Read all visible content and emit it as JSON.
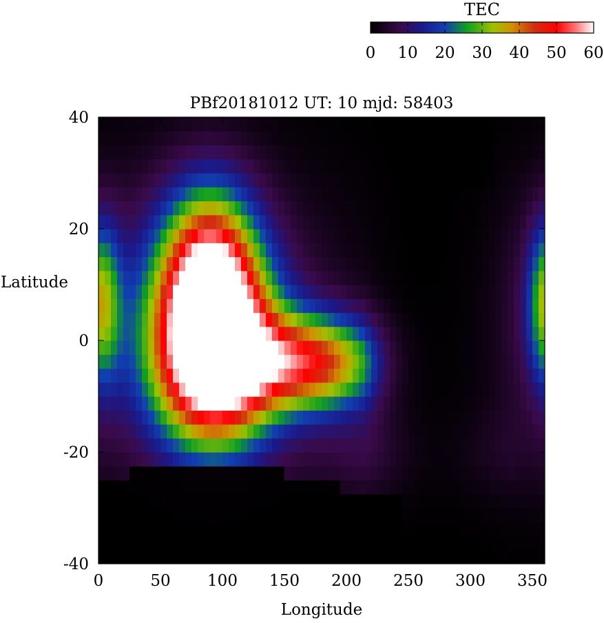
{
  "chart_data": {
    "type": "heatmap",
    "title": "PBf20181012  UT: 10  mjd: 58403",
    "xlabel": "Longitude",
    "ylabel": "Latitude",
    "xlim": [
      0,
      360
    ],
    "ylim": [
      -40,
      40
    ],
    "x_ticks": [
      0,
      50,
      100,
      150,
      200,
      250,
      300,
      350
    ],
    "y_ticks": [
      -40,
      -20,
      0,
      20,
      40
    ],
    "grid": false,
    "colorbar": {
      "title": "TEC",
      "range": [
        0,
        60
      ],
      "ticks": [
        0,
        10,
        20,
        30,
        40,
        50,
        60
      ],
      "placement": "top-right",
      "stops": [
        {
          "v": 0,
          "color": "#000000"
        },
        {
          "v": 8,
          "color": "#3a0a4a"
        },
        {
          "v": 14,
          "color": "#1a1a8c"
        },
        {
          "v": 20,
          "color": "#1040b0"
        },
        {
          "v": 26,
          "color": "#10a020"
        },
        {
          "v": 33,
          "color": "#a0c000"
        },
        {
          "v": 38,
          "color": "#d09000"
        },
        {
          "v": 44,
          "color": "#d03010"
        },
        {
          "v": 50,
          "color": "#ff0000"
        },
        {
          "v": 55,
          "color": "#ff7070"
        },
        {
          "v": 60,
          "color": "#ffffff"
        }
      ]
    },
    "grid_spacing": {
      "lon": 5,
      "lat": 2.5
    },
    "features": [
      {
        "lon": 93,
        "lat": -3,
        "peak": 61,
        "sx": 32,
        "sy": 11
      },
      {
        "lon": 90,
        "lat": 12,
        "peak": 44,
        "sx": 26,
        "sy": 11
      },
      {
        "lon": 170,
        "lat": -4,
        "peak": 43,
        "sx": 42,
        "sy": 6
      },
      {
        "lon": 75,
        "lat": 3,
        "peak": 15,
        "sx": 70,
        "sy": 17
      },
      {
        "lon": 362,
        "lat": 7,
        "peak": 27,
        "sx": 11,
        "sy": 10
      },
      {
        "lon": 250,
        "lat": -20,
        "peak": 8,
        "sx": 55,
        "sy": 6
      }
    ]
  }
}
